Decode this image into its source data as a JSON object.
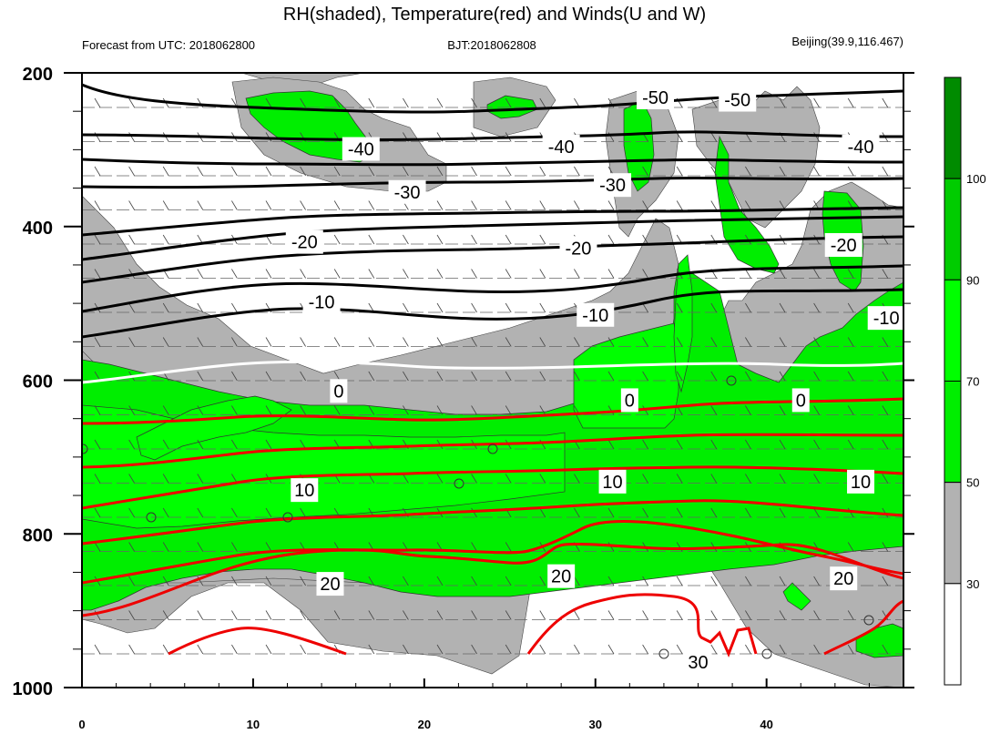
{
  "title": "RH(shaded), Temperature(red) and Winds(U and W)",
  "subtitle_left": "Forecast from UTC: 2018062800",
  "subtitle_center": "BJT:2018062808",
  "subtitle_right": "Beijing(39.9,116.467)",
  "colors": {
    "rh_30_50": "#b2b2b2",
    "rh_50_70": "#00ee00",
    "rh_70_90": "#00ff00",
    "rh_90_100": "#00cc00",
    "rh_100_plus": "#008b00",
    "cold_contour": "#000000",
    "zero_contour": "#ffffff",
    "warm_contour": "#ff0000"
  },
  "chart_data": {
    "type": "contour",
    "x_ticks": [
      0,
      10,
      20,
      30,
      40
    ],
    "x_range": [
      0,
      48
    ],
    "y_ticks": [
      200,
      400,
      600,
      800,
      1000
    ],
    "y_range": [
      200,
      1000
    ],
    "y_inverted": true,
    "colorbar": {
      "labels": [
        30,
        50,
        70,
        90,
        100
      ],
      "levels": [
        "<30",
        "30-50",
        "50-70",
        "70-90",
        "90-100",
        ">100"
      ]
    },
    "temperature_contours": [
      {
        "level": -50,
        "label": "-50"
      },
      {
        "level": -40,
        "label": "-40"
      },
      {
        "level": -30,
        "label": "-30"
      },
      {
        "level": -20,
        "label": "-20"
      },
      {
        "level": -10,
        "label": "-10"
      },
      {
        "level": 0,
        "label": "0"
      },
      {
        "level": 10,
        "label": "10"
      },
      {
        "level": 20,
        "label": "20"
      },
      {
        "level": 30,
        "label": "30"
      }
    ],
    "contour_labels": [
      {
        "text": "-50",
        "x": 33.5,
        "y": 232
      },
      {
        "text": "-50",
        "x": 38.3,
        "y": 235
      },
      {
        "text": "-40",
        "x": 16.3,
        "y": 299
      },
      {
        "text": "-40",
        "x": 28.0,
        "y": 296
      },
      {
        "text": "-40",
        "x": 45.5,
        "y": 296
      },
      {
        "text": "-30",
        "x": 19.0,
        "y": 355
      },
      {
        "text": "-30",
        "x": 31.0,
        "y": 346
      },
      {
        "text": "-20",
        "x": 13.0,
        "y": 420
      },
      {
        "text": "-20",
        "x": 29.0,
        "y": 428
      },
      {
        "text": "-20",
        "x": 44.5,
        "y": 424
      },
      {
        "text": "-10",
        "x": 14.0,
        "y": 498
      },
      {
        "text": "-10",
        "x": 30.0,
        "y": 515
      },
      {
        "text": "-10",
        "x": 47.0,
        "y": 519
      },
      {
        "text": "0",
        "x": 15.0,
        "y": 614
      },
      {
        "text": "0",
        "x": 32.0,
        "y": 626
      },
      {
        "text": "0",
        "x": 42.0,
        "y": 626
      },
      {
        "text": "10",
        "x": 13.0,
        "y": 743
      },
      {
        "text": "10",
        "x": 31.0,
        "y": 732
      },
      {
        "text": "10",
        "x": 45.5,
        "y": 732
      },
      {
        "text": "20",
        "x": 14.5,
        "y": 865
      },
      {
        "text": "20",
        "x": 28.0,
        "y": 855
      },
      {
        "text": "20",
        "x": 44.5,
        "y": 858
      },
      {
        "text": "30",
        "x": 36.0,
        "y": 967
      }
    ]
  }
}
